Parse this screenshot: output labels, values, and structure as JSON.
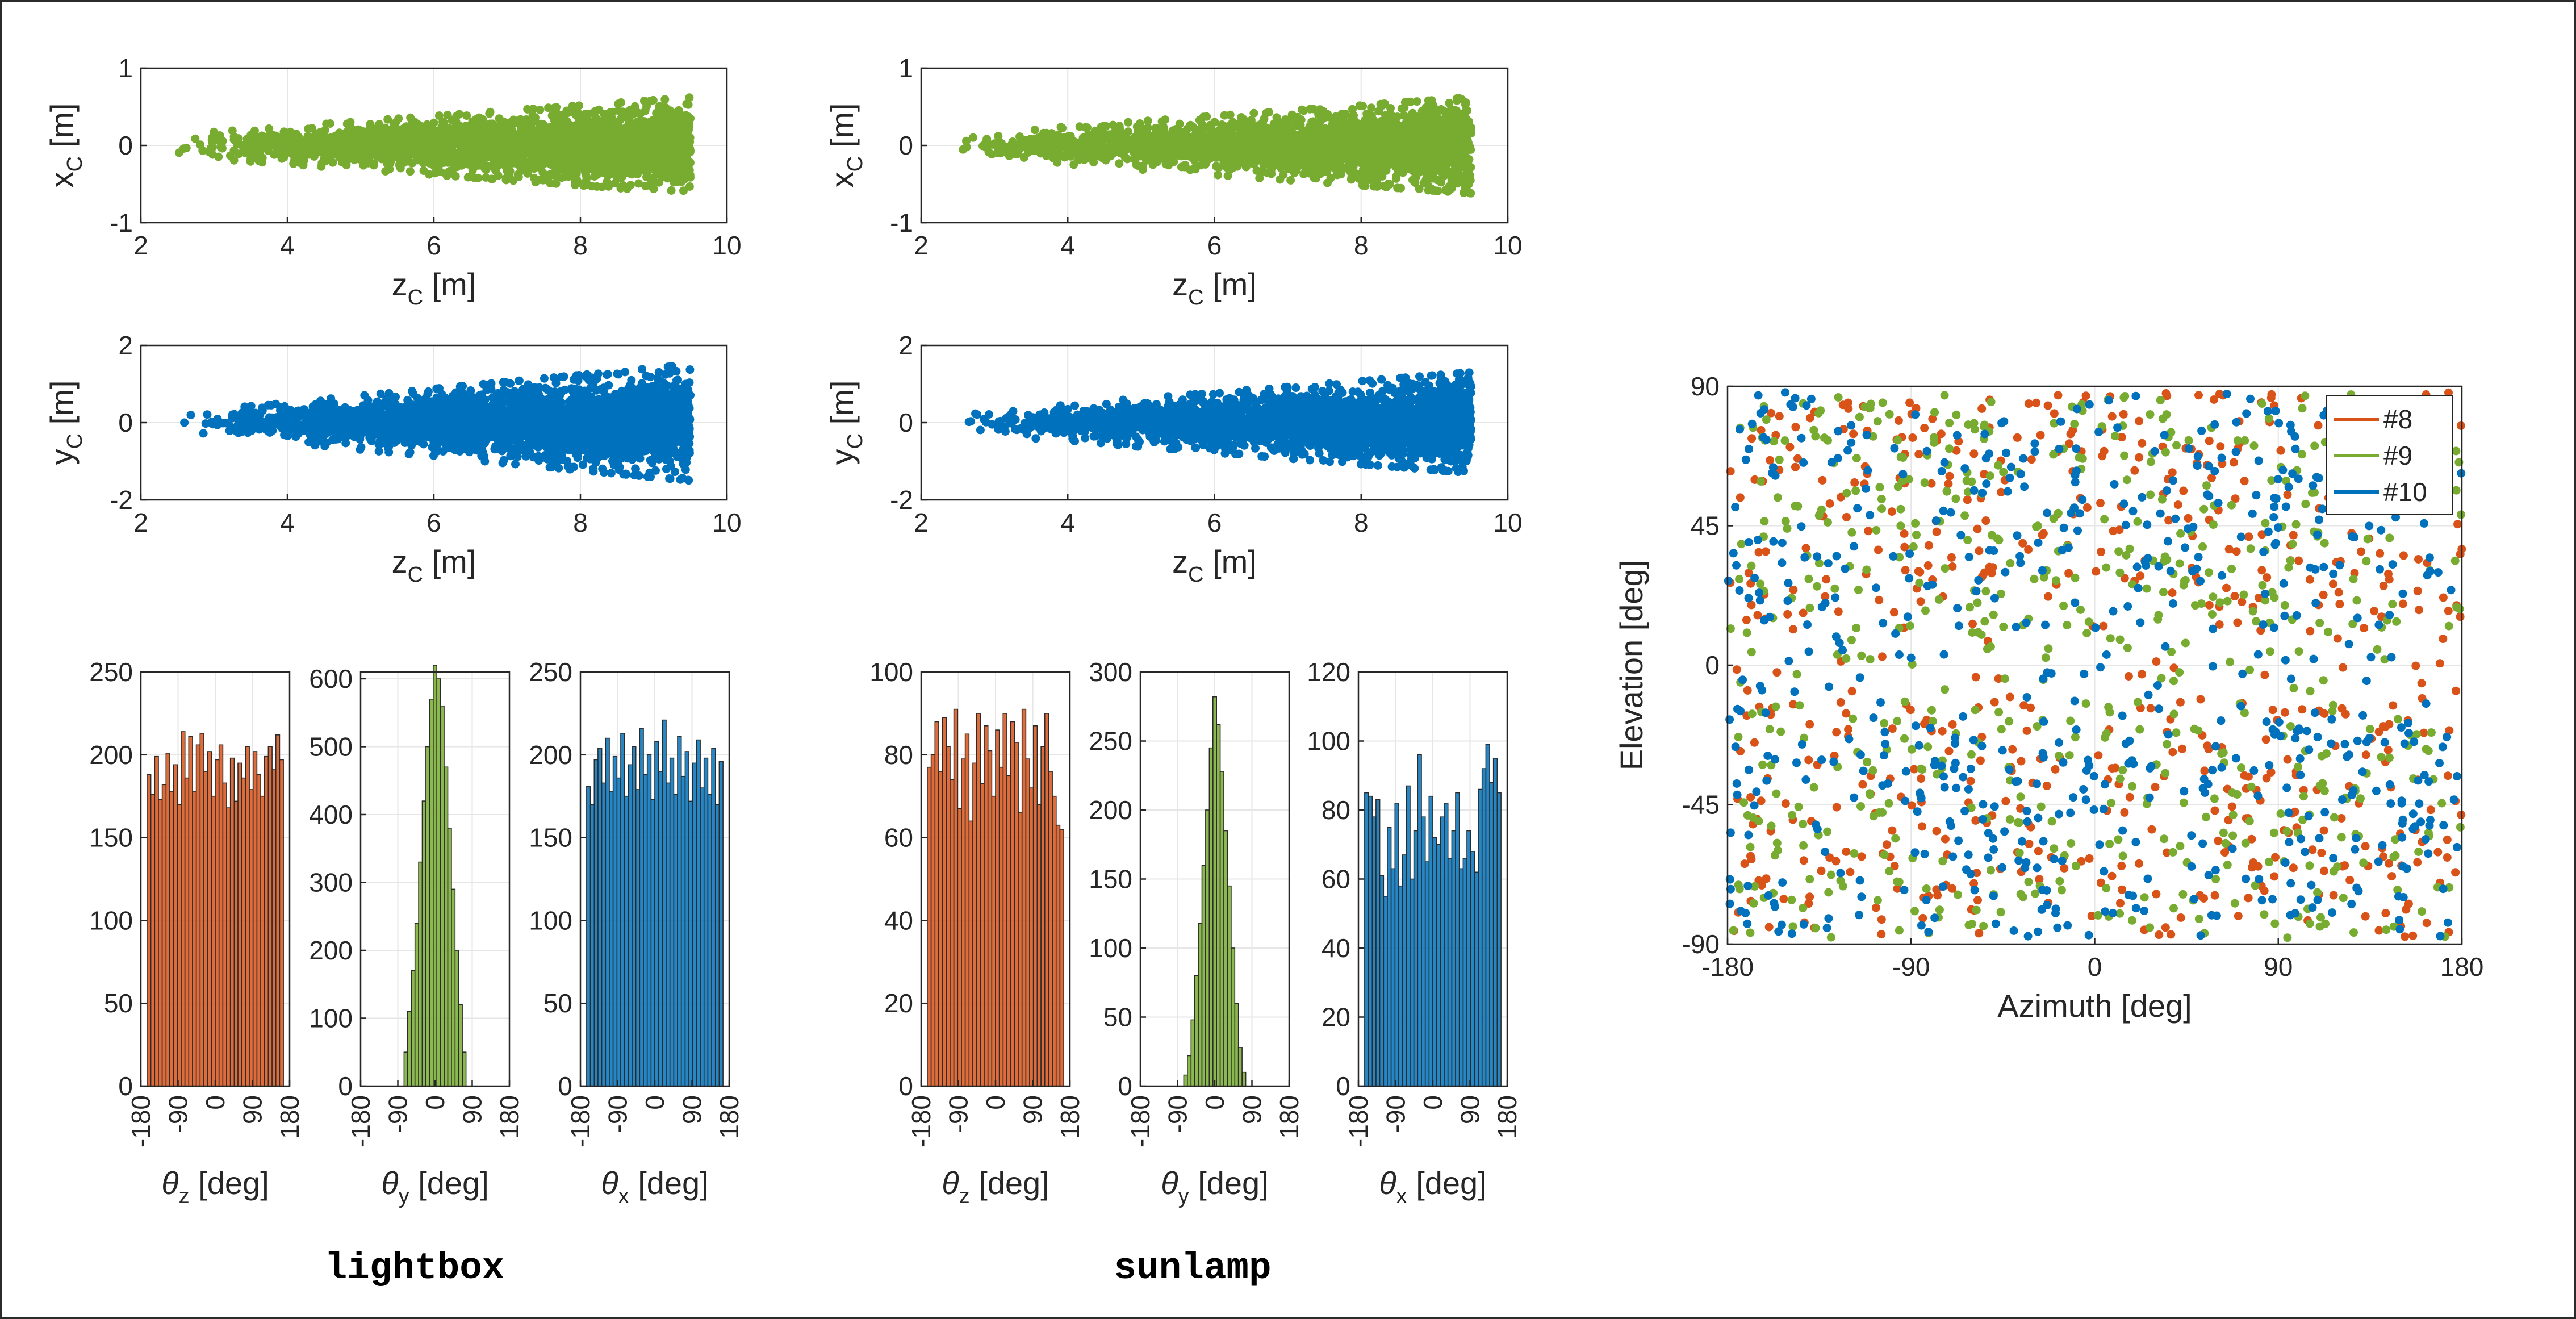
{
  "colors": {
    "green": "#77AC30",
    "blue": "#0072BD",
    "orange": "#D95319",
    "grid": "#e6e6e6",
    "axis": "#262626"
  },
  "captions": [
    "lightbox",
    "sunlamp"
  ],
  "chart_data": [
    {
      "id": "lightbox-xc",
      "type": "scatter",
      "xlabel": "z_C [m]",
      "ylabel": "x_C [m]",
      "xlim": [
        2,
        10
      ],
      "ylim": [
        -1,
        1
      ],
      "xticks": [
        2,
        4,
        6,
        8,
        10
      ],
      "yticks": [
        -1,
        0,
        1
      ],
      "grid": true,
      "series": [
        {
          "color": "green",
          "z_range": [
            2.5,
            9.5
          ],
          "spread_at_z_min": 0.14,
          "spread_at_z_max": 0.62,
          "max_points": 5000
        }
      ]
    },
    {
      "id": "lightbox-yc",
      "type": "scatter",
      "xlabel": "z_C [m]",
      "ylabel": "y_C [m]",
      "xlim": [
        2,
        10
      ],
      "ylim": [
        -2,
        2
      ],
      "xticks": [
        2,
        4,
        6,
        8,
        10
      ],
      "yticks": [
        -2,
        0,
        2
      ],
      "grid": true,
      "series": [
        {
          "color": "blue",
          "z_range": [
            2.5,
            9.5
          ],
          "spread_at_z_min": 0.25,
          "spread_at_z_max": 1.5,
          "max_points": 5000
        }
      ]
    },
    {
      "id": "sunlamp-xc",
      "type": "scatter",
      "xlabel": "z_C [m]",
      "ylabel": "x_C [m]",
      "xlim": [
        2,
        10
      ],
      "ylim": [
        -1,
        1
      ],
      "xticks": [
        2,
        4,
        6,
        8,
        10
      ],
      "yticks": [
        -1,
        0,
        1
      ],
      "grid": true,
      "series": [
        {
          "color": "green",
          "z_range": [
            2.5,
            9.5
          ],
          "spread_at_z_min": 0.14,
          "spread_at_z_max": 0.62,
          "max_points": 2500
        }
      ]
    },
    {
      "id": "sunlamp-yc",
      "type": "scatter",
      "xlabel": "z_C [m]",
      "ylabel": "y_C [m]",
      "xlim": [
        2,
        10
      ],
      "ylim": [
        -2,
        2
      ],
      "xticks": [
        2,
        4,
        6,
        8,
        10
      ],
      "yticks": [
        -2,
        0,
        2
      ],
      "grid": true,
      "series": [
        {
          "color": "blue",
          "z_range": [
            2.5,
            9.5
          ],
          "spread_at_z_min": 0.25,
          "spread_at_z_max": 1.3,
          "max_points": 2500
        }
      ]
    },
    {
      "id": "lightbox-theta-z",
      "type": "bar",
      "xlabel": "θz [deg]",
      "xlim": [
        -180,
        180
      ],
      "ylim": [
        0,
        250
      ],
      "xticks": [
        -180,
        -90,
        0,
        90,
        180
      ],
      "yticks": [
        0,
        50,
        100,
        150,
        200,
        250
      ],
      "color": "orange",
      "bin_range": [
        -165,
        165
      ],
      "values": [
        188,
        176,
        199,
        173,
        182,
        201,
        178,
        194,
        170,
        214,
        186,
        211,
        178,
        206,
        213,
        190,
        202,
        175,
        197,
        206,
        183,
        168,
        198,
        172,
        195,
        186,
        205,
        179,
        202,
        188,
        175,
        199,
        205,
        191,
        212,
        197
      ]
    },
    {
      "id": "lightbox-theta-y",
      "type": "bar",
      "xlabel": "θy [deg]",
      "xlim": [
        -180,
        180
      ],
      "ylim": [
        0,
        610
      ],
      "xticks": [
        -180,
        -90,
        0,
        90,
        180
      ],
      "yticks": [
        0,
        100,
        200,
        300,
        400,
        500,
        600
      ],
      "color": "green",
      "bin_range": [
        -75,
        75
      ],
      "values": [
        50,
        110,
        170,
        240,
        330,
        420,
        500,
        570,
        620,
        600,
        560,
        470,
        380,
        290,
        200,
        120,
        50
      ]
    },
    {
      "id": "lightbox-theta-x",
      "type": "bar",
      "xlabel": "θx [deg]",
      "xlim": [
        -180,
        180
      ],
      "ylim": [
        0,
        250
      ],
      "xticks": [
        -180,
        -90,
        0,
        90,
        180
      ],
      "yticks": [
        0,
        50,
        100,
        150,
        200,
        250
      ],
      "color": "blue",
      "bin_range": [
        -165,
        165
      ],
      "values": [
        181,
        170,
        197,
        204,
        183,
        210,
        178,
        199,
        186,
        213,
        175,
        194,
        205,
        179,
        216,
        188,
        200,
        173,
        208,
        190,
        221,
        183,
        198,
        176,
        211,
        187,
        202,
        172,
        195,
        209,
        180,
        198,
        176,
        204,
        170,
        196
      ]
    },
    {
      "id": "sunlamp-theta-z",
      "type": "bar",
      "xlabel": "θz [deg]",
      "xlim": [
        -180,
        180
      ],
      "ylim": [
        0,
        100
      ],
      "xticks": [
        -180,
        -90,
        0,
        90,
        180
      ],
      "yticks": [
        0,
        20,
        40,
        60,
        80,
        100
      ],
      "color": "orange",
      "bin_range": [
        -165,
        165
      ],
      "values": [
        77,
        80,
        88,
        76,
        89,
        82,
        74,
        91,
        67,
        79,
        85,
        64,
        78,
        90,
        73,
        87,
        81,
        70,
        86,
        77,
        90,
        75,
        88,
        83,
        66,
        91,
        79,
        72,
        87,
        68,
        82,
        90,
        76,
        70,
        63,
        62
      ]
    },
    {
      "id": "sunlamp-theta-y",
      "type": "bar",
      "xlabel": "θy [deg]",
      "xlim": [
        -180,
        180
      ],
      "ylim": [
        0,
        300
      ],
      "xticks": [
        -180,
        -90,
        0,
        90,
        180
      ],
      "yticks": [
        0,
        50,
        100,
        150,
        200,
        250,
        300
      ],
      "color": "green",
      "bin_range": [
        -75,
        75
      ],
      "values": [
        8,
        22,
        48,
        80,
        118,
        160,
        200,
        245,
        282,
        262,
        228,
        185,
        145,
        100,
        60,
        28,
        10
      ]
    },
    {
      "id": "sunlamp-theta-x",
      "type": "bar",
      "xlabel": "θx [deg]",
      "xlim": [
        -180,
        180
      ],
      "ylim": [
        0,
        120
      ],
      "xticks": [
        -180,
        -90,
        0,
        90,
        180
      ],
      "yticks": [
        0,
        20,
        40,
        60,
        80,
        100,
        120
      ],
      "color": "blue",
      "bin_range": [
        -165,
        165
      ],
      "values": [
        85,
        84,
        78,
        83,
        61,
        55,
        75,
        63,
        82,
        58,
        67,
        87,
        60,
        74,
        96,
        78,
        65,
        84,
        72,
        70,
        78,
        82,
        66,
        74,
        85,
        63,
        66,
        74,
        68,
        62,
        86,
        92,
        99,
        88,
        95,
        85
      ]
    },
    {
      "id": "azimuth-elevation",
      "type": "scatter",
      "xlabel": "Azimuth [deg]",
      "ylabel": "Elevation [deg]",
      "xlim": [
        -180,
        180
      ],
      "ylim": [
        -90,
        90
      ],
      "xticks": [
        -180,
        -90,
        0,
        90,
        180
      ],
      "yticks": [
        -90,
        -45,
        0,
        45,
        90
      ],
      "grid": true,
      "legend": "top-right",
      "series": [
        {
          "name": "#8",
          "color": "orange",
          "points_shown": 600
        },
        {
          "name": "#9",
          "color": "green",
          "points_shown": 600
        },
        {
          "name": "#10",
          "color": "blue",
          "points_shown": 600
        }
      ]
    }
  ]
}
